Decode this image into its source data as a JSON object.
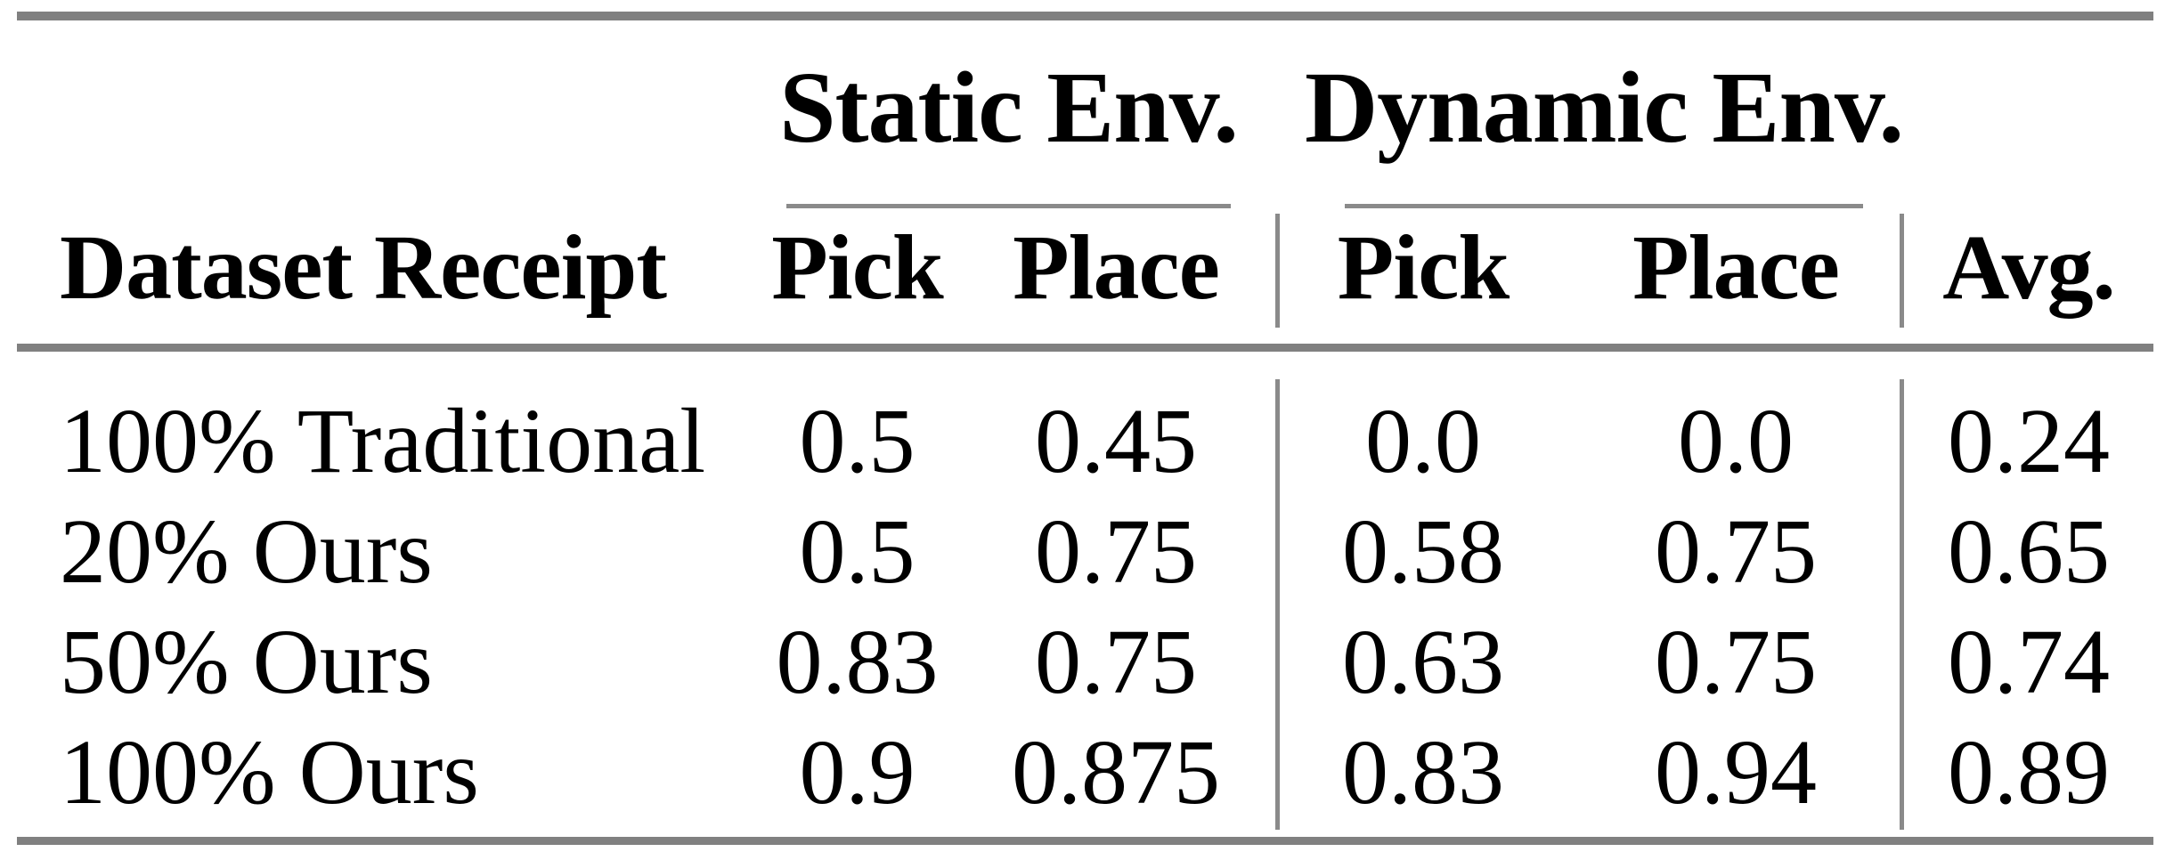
{
  "table": {
    "groups": [
      {
        "label": "Static Env."
      },
      {
        "label": "Dynamic Env."
      }
    ],
    "headers": {
      "row_label": "Dataset Receipt",
      "static_pick": "Pick",
      "static_place": "Place",
      "dynamic_pick": "Pick",
      "dynamic_place": "Place",
      "avg": "Avg."
    },
    "rows": [
      {
        "label": "100% Traditional",
        "static_pick": "0.5",
        "static_place": "0.45",
        "dynamic_pick": "0.0",
        "dynamic_place": "0.0",
        "avg": "0.24"
      },
      {
        "label": "20% Ours",
        "static_pick": "0.5",
        "static_place": "0.75",
        "dynamic_pick": "0.58",
        "dynamic_place": "0.75",
        "avg": "0.65"
      },
      {
        "label": "50% Ours",
        "static_pick": "0.83",
        "static_place": "0.75",
        "dynamic_pick": "0.63",
        "dynamic_place": "0.75",
        "avg": "0.74"
      },
      {
        "label": "100% Ours",
        "static_pick": "0.9",
        "static_place": "0.875",
        "dynamic_pick": "0.83",
        "dynamic_place": "0.94",
        "avg": "0.89"
      }
    ]
  },
  "colors": {
    "rule": "#808080",
    "thin_rule": "#8a8a8a",
    "text": "#000000",
    "background": "#ffffff"
  }
}
